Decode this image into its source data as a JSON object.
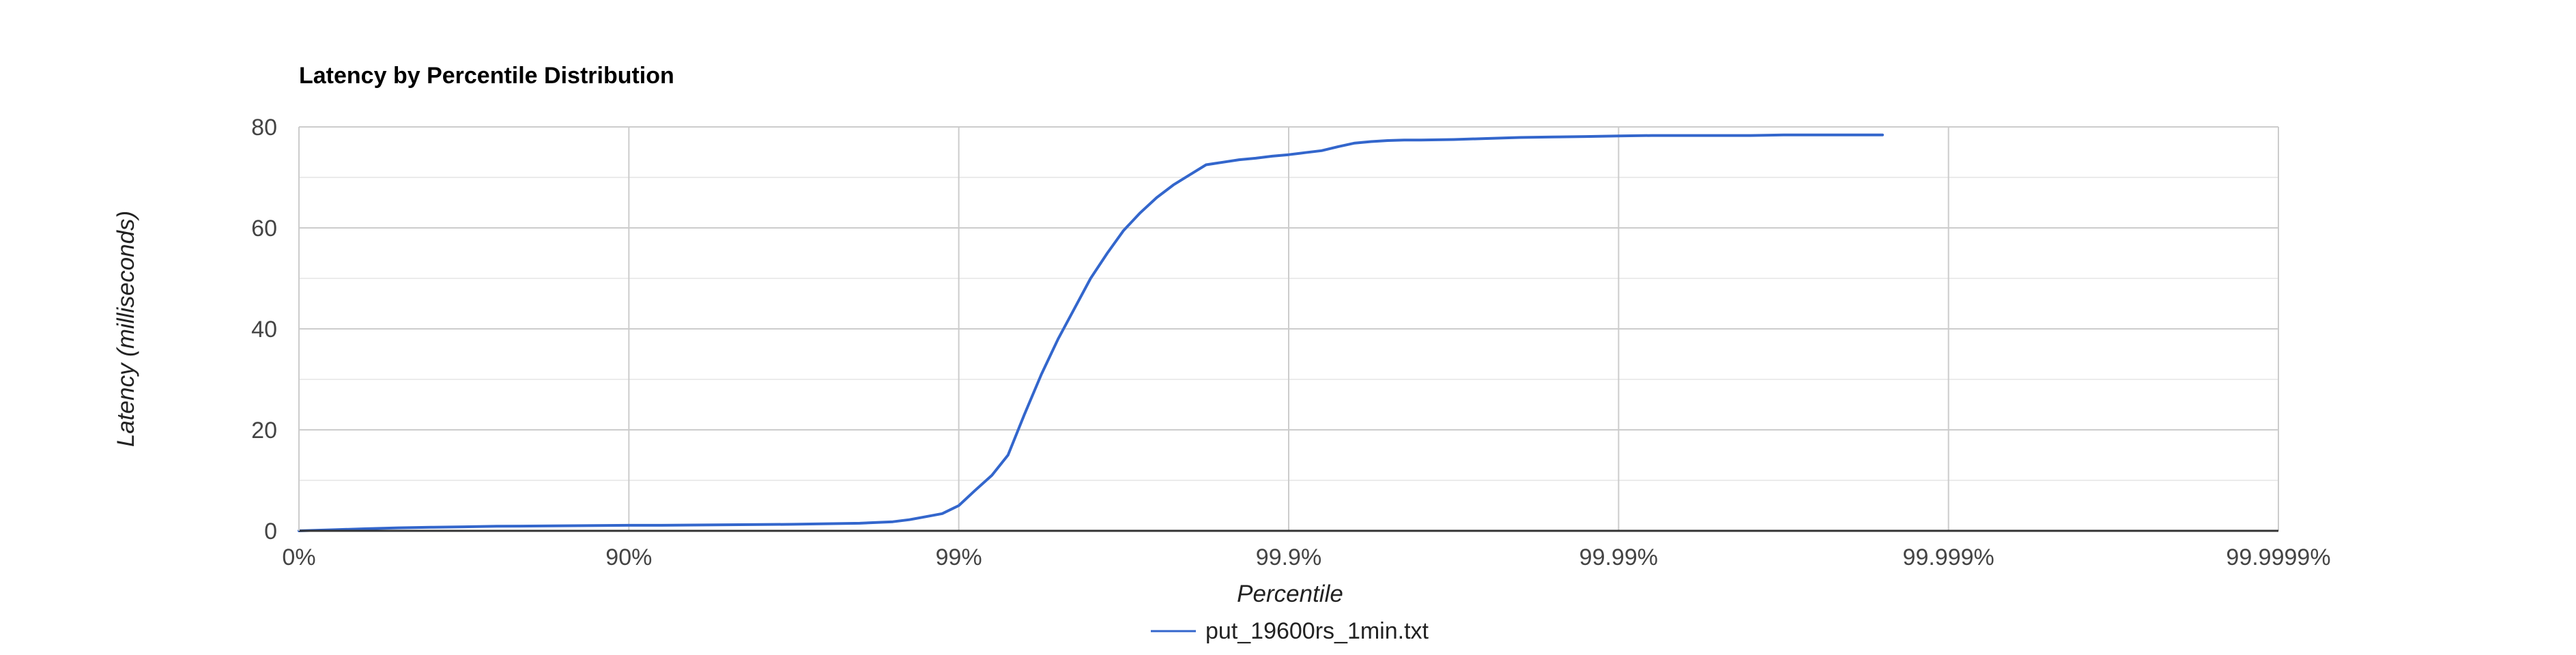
{
  "chart_data": {
    "type": "line",
    "title": "Latency by Percentile Distribution",
    "xlabel": "Percentile",
    "ylabel": "Latency (milliseconds)",
    "x_scale": "log-percentile (1/(1-p))",
    "x_ticks": [
      "0%",
      "90%",
      "99%",
      "99.9%",
      "99.99%",
      "99.999%",
      "99.9999%"
    ],
    "x_tick_values": [
      1,
      10,
      100,
      1000,
      10000,
      100000,
      1000000
    ],
    "y_ticks": [
      "0",
      "20",
      "40",
      "60",
      "80"
    ],
    "ylim": [
      0,
      80
    ],
    "grid": true,
    "legend_position": "bottom",
    "colors": {
      "series": "#3366cc",
      "grid_major": "#cccccc",
      "grid_minor": "#ebebeb",
      "axis": "#333333"
    },
    "series": [
      {
        "name": "put_19600rs_1min.txt",
        "x": [
          1,
          1.26,
          1.58,
          2.0,
          2.51,
          3.16,
          3.98,
          5.01,
          6.31,
          7.94,
          10,
          12.6,
          15.8,
          20.0,
          25.1,
          31.6,
          39.8,
          50.1,
          63.1,
          70.8,
          79.4,
          89.1,
          100,
          112,
          126,
          141,
          158,
          178,
          200,
          224,
          251,
          282,
          316,
          355,
          398,
          447,
          501,
          562,
          631,
          708,
          794,
          891,
          1000,
          1122,
          1259,
          1413,
          1585,
          1778,
          1995,
          2239,
          2512,
          3162,
          3981,
          5012,
          6310,
          7943,
          10000,
          12589,
          15849,
          19953,
          25119,
          31623,
          39811,
          50119,
          63096
        ],
        "values": [
          0.0,
          0.2,
          0.4,
          0.6,
          0.7,
          0.8,
          0.9,
          0.95,
          1.0,
          1.05,
          1.1,
          1.1,
          1.15,
          1.2,
          1.25,
          1.3,
          1.4,
          1.5,
          1.8,
          2.2,
          2.8,
          3.4,
          5.0,
          8.0,
          11.0,
          15.0,
          23.0,
          31.0,
          38.0,
          44.0,
          50.0,
          55.0,
          59.5,
          63.0,
          66.0,
          68.5,
          70.5,
          72.5,
          73.0,
          73.5,
          73.8,
          74.2,
          74.5,
          74.9,
          75.3,
          76.1,
          76.8,
          77.1,
          77.3,
          77.4,
          77.4,
          77.5,
          77.7,
          77.9,
          78.0,
          78.1,
          78.2,
          78.3,
          78.3,
          78.3,
          78.3,
          78.4,
          78.4,
          78.4,
          78.4
        ]
      }
    ]
  }
}
